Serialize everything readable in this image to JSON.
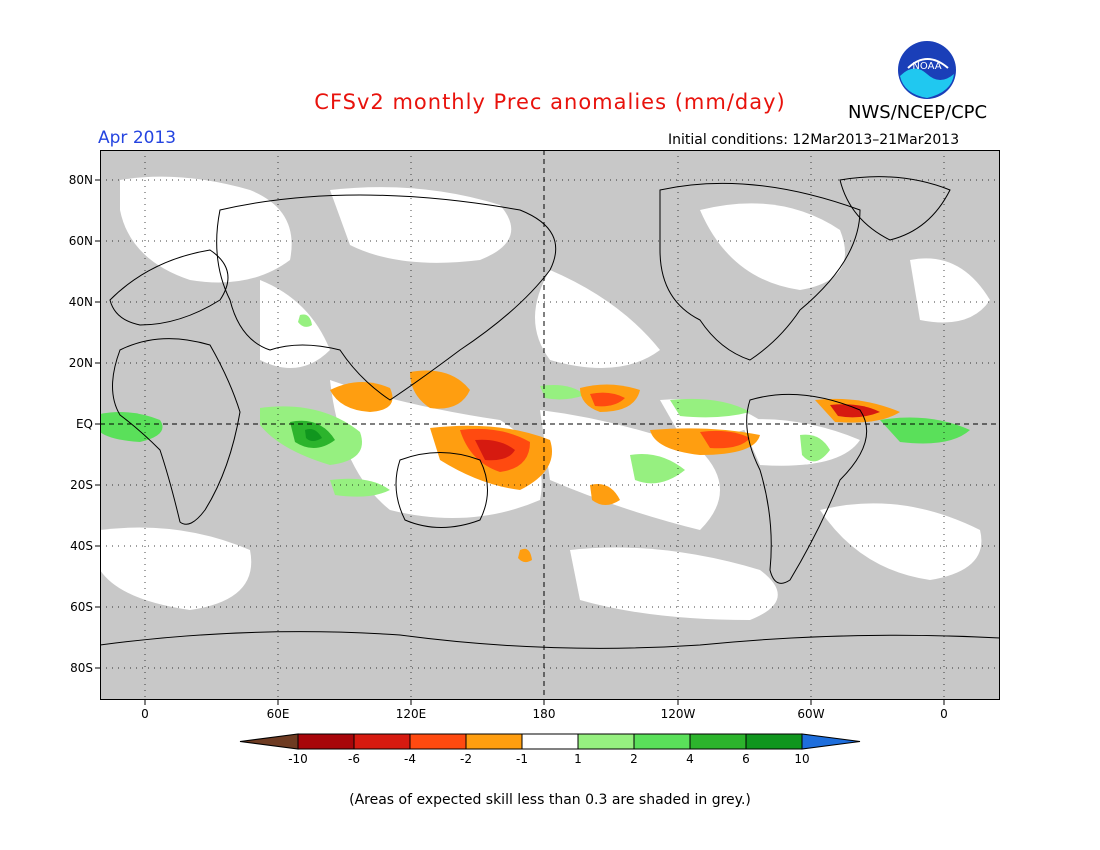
{
  "title": "CFSv2 monthly Prec anomalies (mm/day)",
  "org": "NWS/NCEP/CPC",
  "logo_text": "NOAA",
  "valid_month": "Apr 2013",
  "initial_conditions": "Initial conditions: 12Mar2013–21Mar2013",
  "lat_labels": [
    "80N",
    "60N",
    "40N",
    "20N",
    "EQ",
    "20S",
    "40S",
    "60S",
    "80S"
  ],
  "lon_labels": [
    "0",
    "60E",
    "120E",
    "180",
    "120W",
    "60W",
    "0"
  ],
  "colorbar": {
    "labels": [
      "-10",
      "-6",
      "-4",
      "-2",
      "-1",
      "1",
      "2",
      "4",
      "6",
      "10"
    ],
    "colors": [
      "#6e3b22",
      "#a8060a",
      "#d61a10",
      "#ff4a10",
      "#ff9e10",
      "#ffffff",
      "#96f080",
      "#5ae05a",
      "#2cb42c",
      "#10961e",
      "#1e6edc"
    ]
  },
  "skill_mask_color": "#c8c8c8",
  "note": "(Areas of expected skill less than 0.3 are shaded in grey.)"
}
